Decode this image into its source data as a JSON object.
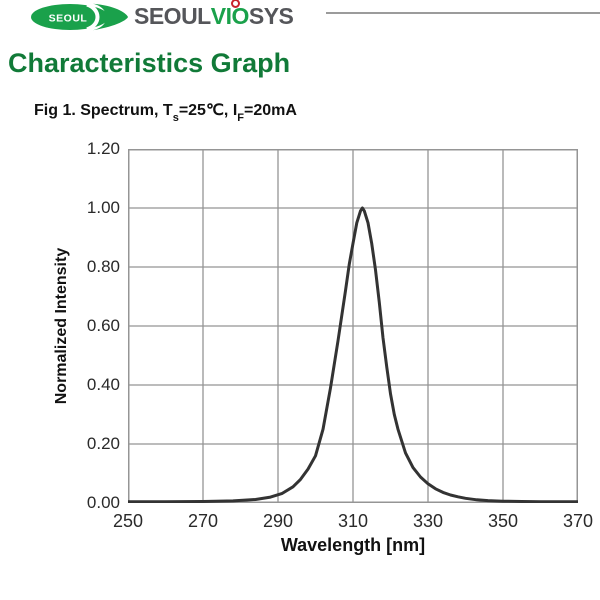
{
  "logo": {
    "badge_text": "SEOUL",
    "wordmark": {
      "part1": "SEOUL",
      "part2": "VIO",
      "part3": "SYS"
    },
    "colors": {
      "green": "#1aa14b",
      "gray": "#55565a",
      "red": "#c8232c"
    }
  },
  "page": {
    "title": "Characteristics Graph",
    "title_color": "#117a38"
  },
  "figure": {
    "caption": {
      "prefix": "Fig 1. Spectrum, T",
      "sub1": "s",
      "mid": "=25℃, I",
      "sub2": "F",
      "suffix": "=20mA"
    }
  },
  "chart_data": {
    "type": "line",
    "title": "Fig 1. Spectrum, Ts=25°C, IF=20mA",
    "xlabel": "Wavelength [nm]",
    "ylabel": "Normalized Intensity",
    "xlim": [
      250,
      370
    ],
    "ylim": [
      0.0,
      1.2
    ],
    "xticks": [
      250,
      270,
      290,
      310,
      330,
      350,
      370
    ],
    "yticks": [
      0.0,
      0.2,
      0.4,
      0.6,
      0.8,
      1.0,
      1.2
    ],
    "ytick_labels": [
      "0.00",
      "0.20",
      "0.40",
      "0.60",
      "0.80",
      "1.00",
      "1.20"
    ],
    "grid": true,
    "legend": "none",
    "peak_wavelength_nm": 312.5,
    "peak_intensity": 1.0,
    "line_color": "#333333",
    "grid_color": "#959595",
    "series": [
      {
        "name": "spectrum",
        "points": [
          [
            250,
            0.004
          ],
          [
            260,
            0.004
          ],
          [
            270,
            0.005
          ],
          [
            278,
            0.007
          ],
          [
            284,
            0.012
          ],
          [
            288,
            0.02
          ],
          [
            291,
            0.032
          ],
          [
            294,
            0.055
          ],
          [
            296,
            0.08
          ],
          [
            298,
            0.115
          ],
          [
            300,
            0.16
          ],
          [
            302,
            0.25
          ],
          [
            304,
            0.39
          ],
          [
            306,
            0.55
          ],
          [
            308,
            0.72
          ],
          [
            309,
            0.81
          ],
          [
            310,
            0.88
          ],
          [
            311,
            0.95
          ],
          [
            312,
            0.99
          ],
          [
            312.5,
            1.0
          ],
          [
            313,
            0.99
          ],
          [
            314,
            0.95
          ],
          [
            315,
            0.88
          ],
          [
            316,
            0.79
          ],
          [
            317,
            0.68
          ],
          [
            318,
            0.56
          ],
          [
            319,
            0.46
          ],
          [
            320,
            0.37
          ],
          [
            321,
            0.3
          ],
          [
            322,
            0.25
          ],
          [
            324,
            0.17
          ],
          [
            326,
            0.12
          ],
          [
            328,
            0.088
          ],
          [
            330,
            0.065
          ],
          [
            332,
            0.048
          ],
          [
            334,
            0.036
          ],
          [
            336,
            0.027
          ],
          [
            338,
            0.021
          ],
          [
            340,
            0.016
          ],
          [
            343,
            0.011
          ],
          [
            346,
            0.008
          ],
          [
            350,
            0.006
          ],
          [
            355,
            0.005
          ],
          [
            360,
            0.004
          ],
          [
            365,
            0.004
          ],
          [
            370,
            0.004
          ]
        ]
      }
    ]
  }
}
